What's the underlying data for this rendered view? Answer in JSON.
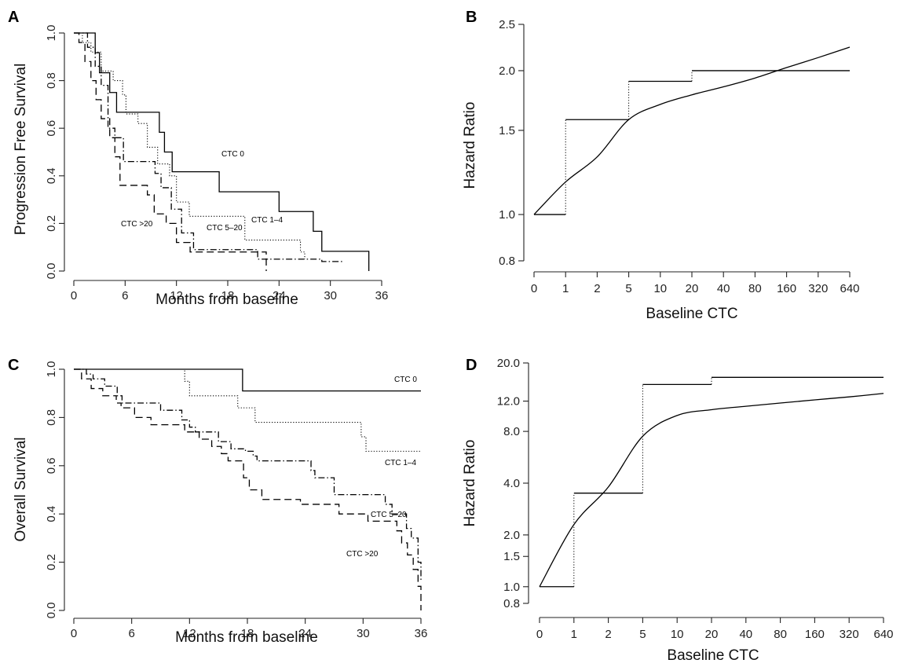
{
  "chart_data": [
    {
      "panel": "A",
      "type": "line",
      "xlabel": "Months from baseline",
      "ylabel": "Progression Free Survival",
      "xlim": [
        0,
        36
      ],
      "ylim": [
        0,
        1
      ],
      "xticks": [
        "0",
        "6",
        "12",
        "18",
        "24",
        "30",
        "36"
      ],
      "yticks": [
        "0.0",
        "0.2",
        "0.4",
        "0.6",
        "0.8",
        "1.0"
      ],
      "series": [
        {
          "name": "CTC 0",
          "style": "solid",
          "x": [
            0,
            2.5,
            3.0,
            4.2,
            5.0,
            5.5,
            10.0,
            10.6,
            11.5,
            17.0,
            24.0,
            28.0,
            29.0,
            34.5
          ],
          "y": [
            1.0,
            0.917,
            0.833,
            0.75,
            0.667,
            0.667,
            0.583,
            0.5,
            0.417,
            0.333,
            0.25,
            0.167,
            0.083,
            0.0
          ]
        },
        {
          "name": "CTC 1–4",
          "style": "dotted",
          "x": [
            0,
            1.0,
            2.0,
            3.2,
            4.6,
            5.7,
            6.1,
            7.5,
            8.6,
            9.8,
            11.2,
            12.0,
            13.5,
            20.0,
            26.5,
            27.0
          ],
          "y": [
            1.0,
            0.96,
            0.92,
            0.84,
            0.8,
            0.74,
            0.66,
            0.62,
            0.52,
            0.45,
            0.4,
            0.29,
            0.23,
            0.13,
            0.08,
            0.05
          ]
        },
        {
          "name": "CTC 5–20",
          "style": "dashdot",
          "x": [
            0,
            1.6,
            2.5,
            3.2,
            4.0,
            4.8,
            5.8,
            8.6,
            9.5,
            10.2,
            11.4,
            12.6,
            14.0,
            21.5,
            28.0,
            29.0,
            31.5
          ],
          "y": [
            1.0,
            0.94,
            0.86,
            0.78,
            0.6,
            0.56,
            0.46,
            0.46,
            0.41,
            0.35,
            0.26,
            0.16,
            0.09,
            0.05,
            0.05,
            0.04,
            0.04
          ]
        },
        {
          "name": "CTC >20",
          "style": "dashed",
          "x": [
            0,
            0.6,
            1.3,
            2.0,
            2.6,
            3.2,
            4.2,
            4.8,
            5.4,
            8.6,
            9.4,
            10.8,
            12.0,
            13.6,
            22.5
          ],
          "y": [
            1.0,
            0.96,
            0.88,
            0.8,
            0.72,
            0.64,
            0.56,
            0.48,
            0.36,
            0.32,
            0.24,
            0.2,
            0.12,
            0.08,
            0.0
          ]
        }
      ],
      "annotations": [
        "CTC 0",
        "CTC 1–4",
        "CTC 5–20",
        "CTC >20"
      ]
    },
    {
      "panel": "B",
      "type": "line",
      "xlabel": "Baseline CTC",
      "ylabel": "Hazard Ratio",
      "xticks": [
        "0",
        "1",
        "2",
        "5",
        "10",
        "20",
        "40",
        "80",
        "160",
        "320",
        "640"
      ],
      "yticks": [
        "0.8",
        "1.0",
        "1.5",
        "2.0",
        "2.5"
      ],
      "yscale": "log",
      "ylim": [
        0.8,
        2.5
      ],
      "step_series": {
        "x": [
          0,
          1,
          5,
          20,
          640
        ],
        "y": [
          1.0,
          1.58,
          1.9,
          2.0,
          2.0
        ]
      },
      "smooth_series": {
        "x": [
          0,
          1,
          2,
          5,
          10,
          20,
          40,
          80,
          160,
          320,
          640
        ],
        "y": [
          1.0,
          1.17,
          1.32,
          1.58,
          1.7,
          1.78,
          1.85,
          1.93,
          2.03,
          2.13,
          2.24
        ]
      }
    },
    {
      "panel": "C",
      "type": "line",
      "xlabel": "Months from baseline",
      "ylabel": "Overall Survival",
      "xlim": [
        0,
        36
      ],
      "ylim": [
        0,
        1
      ],
      "xticks": [
        "0",
        "6",
        "12",
        "18",
        "24",
        "30",
        "36"
      ],
      "yticks": [
        "0.0",
        "0.2",
        "0.4",
        "0.6",
        "0.8",
        "1.0"
      ],
      "series": [
        {
          "name": "CTC 0",
          "style": "solid",
          "x": [
            0,
            17.5,
            36.0
          ],
          "y": [
            1.0,
            0.91,
            0.91
          ]
        },
        {
          "name": "CTC 1–4",
          "style": "dotted",
          "x": [
            0,
            11.5,
            12.0,
            17.0,
            17.5,
            18.8,
            29.8,
            30.3,
            36.0
          ],
          "y": [
            1.0,
            0.95,
            0.89,
            0.84,
            0.84,
            0.78,
            0.72,
            0.66,
            0.66
          ]
        },
        {
          "name": "CTC 5–20",
          "style": "dashdot",
          "x": [
            0,
            1.3,
            2.0,
            3.2,
            4.5,
            5.0,
            7.0,
            9.0,
            11.2,
            12.0,
            12.6,
            14.0,
            15.0,
            16.3,
            17.0,
            17.8,
            18.6,
            19.0,
            19.7,
            24.6,
            25.0,
            27.0,
            31.5,
            32.3,
            33.0,
            34.5,
            35.0,
            35.7,
            36.0
          ],
          "y": [
            1.0,
            0.98,
            0.96,
            0.93,
            0.89,
            0.86,
            0.86,
            0.83,
            0.79,
            0.76,
            0.74,
            0.74,
            0.7,
            0.67,
            0.67,
            0.66,
            0.64,
            0.62,
            0.62,
            0.58,
            0.55,
            0.48,
            0.48,
            0.44,
            0.4,
            0.34,
            0.3,
            0.2,
            0.12
          ]
        },
        {
          "name": "CTC >20",
          "style": "dashed",
          "x": [
            0,
            0.8,
            1.8,
            3.0,
            4.4,
            4.9,
            6.3,
            8.0,
            11.5,
            13.0,
            14.3,
            15.3,
            16.0,
            17.6,
            18.2,
            19.5,
            23.5,
            27.5,
            30.5,
            33.5,
            34.0,
            34.6,
            35.2,
            35.7,
            36.0
          ],
          "y": [
            1.0,
            0.96,
            0.92,
            0.89,
            0.86,
            0.84,
            0.8,
            0.77,
            0.74,
            0.71,
            0.68,
            0.65,
            0.62,
            0.55,
            0.5,
            0.46,
            0.44,
            0.4,
            0.37,
            0.33,
            0.28,
            0.23,
            0.17,
            0.1,
            0.0
          ]
        }
      ],
      "annotations": [
        "CTC 0",
        "CTC 1–4",
        "CTC 5–20",
        "CTC >20"
      ]
    },
    {
      "panel": "D",
      "type": "line",
      "xlabel": "Baseline CTC",
      "ylabel": "Hazard Ratio",
      "xticks": [
        "0",
        "1",
        "2",
        "5",
        "10",
        "20",
        "40",
        "80",
        "160",
        "320",
        "640"
      ],
      "yticks": [
        "0.8",
        "1.0",
        "1.5",
        "2.0",
        "4.0",
        "8.0",
        "12.0",
        "20.0"
      ],
      "yscale": "log",
      "ylim": [
        0.8,
        20
      ],
      "step_series": {
        "x": [
          0,
          1,
          5,
          20,
          640
        ],
        "y": [
          1.0,
          3.5,
          15.0,
          16.5,
          16.5
        ]
      },
      "smooth_series": {
        "x": [
          0,
          1,
          2,
          5,
          10,
          20,
          40,
          80,
          160,
          320,
          640
        ],
        "y": [
          1.0,
          2.3,
          3.8,
          7.5,
          9.9,
          10.7,
          11.2,
          11.7,
          12.2,
          12.7,
          13.3
        ]
      }
    }
  ]
}
